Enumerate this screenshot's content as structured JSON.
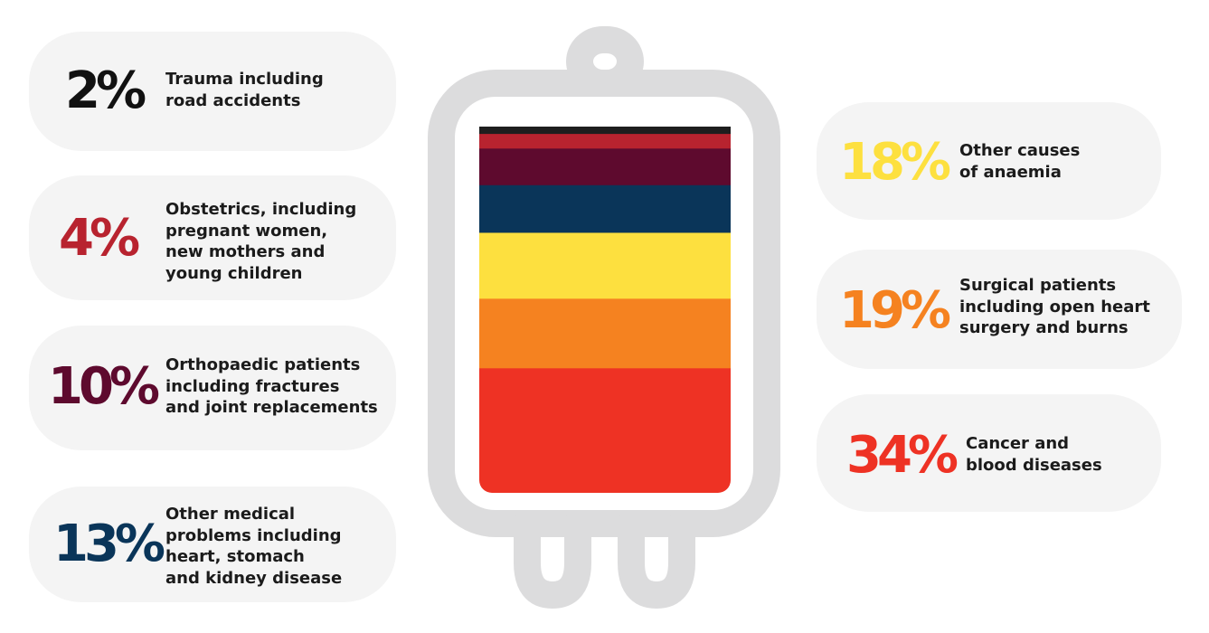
{
  "chart_data": {
    "type": "stacked-bar",
    "title": "",
    "unit": "%",
    "segments": [
      {
        "label": "Trauma including road accidents",
        "value": 2,
        "value_label": "2%",
        "color": "#1e1e1e"
      },
      {
        "label": "Obstetrics, including pregnant women, new mothers and young children",
        "value": 4,
        "value_label": "4%",
        "color": "#b8232f"
      },
      {
        "label": "Orthopaedic patients including fractures and joint replacements",
        "value": 10,
        "value_label": "10%",
        "color": "#5e0a2e"
      },
      {
        "label": "Other medical problems including heart, stomach and kidney disease",
        "value": 13,
        "value_label": "13%",
        "color": "#0a3559"
      },
      {
        "label": "Other causes of anaemia",
        "value": 18,
        "value_label": "18%",
        "color": "#fde03f"
      },
      {
        "label": "Surgical patients including open heart surgery and burns",
        "value": 19,
        "value_label": "19%",
        "color": "#f58220"
      },
      {
        "label": "Cancer and blood diseases",
        "value": 34,
        "value_label": "34%",
        "color": "#ee3224"
      }
    ]
  },
  "cards": [
    {
      "pct": "2%",
      "color": "#111111",
      "text": "Trauma including\nroad accidents"
    },
    {
      "pct": "4%",
      "color": "#b8232f",
      "text": "Obstetrics, including\npregnant women,\nnew mothers and\nyoung children"
    },
    {
      "pct": "10%",
      "color": "#5e0a2e",
      "text": "Orthopaedic patients\nincluding fractures\nand joint replacements"
    },
    {
      "pct": "13%",
      "color": "#0a3559",
      "text": "Other medical\nproblems including\nheart, stomach\nand kidney disease"
    },
    {
      "pct": "18%",
      "color": "#fde03f",
      "text": "Other causes\nof anaemia"
    },
    {
      "pct": "19%",
      "color": "#f58220",
      "text": "Surgical patients\nincluding open heart\nsurgery and burns"
    },
    {
      "pct": "34%",
      "color": "#ee3224",
      "text": "Cancer and\nblood diseases"
    }
  ]
}
